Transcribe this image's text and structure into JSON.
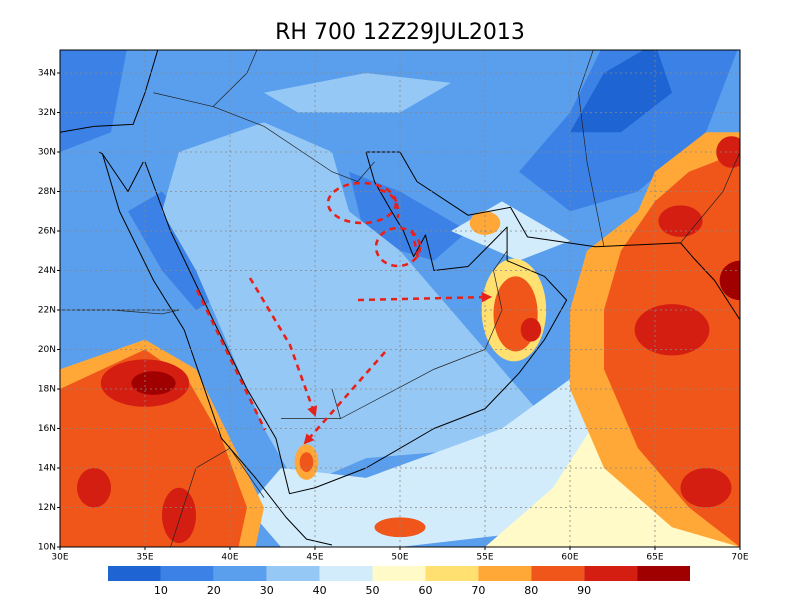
{
  "title": "RH 700 12Z29JUL2013",
  "map": {
    "lat_labels": [
      "34N",
      "32N",
      "30N",
      "28N",
      "26N",
      "24N",
      "22N",
      "20N",
      "18N",
      "16N",
      "14N",
      "12N",
      "10N"
    ],
    "lon_labels": [
      "30E",
      "35E",
      "40E",
      "45E",
      "50E",
      "55E",
      "60E",
      "65E",
      "70E"
    ]
  },
  "colorbar": {
    "labels": [
      "10",
      "20",
      "30",
      "40",
      "50",
      "60",
      "70",
      "80",
      "90"
    ],
    "colors": [
      "#1e64d2",
      "#3c82e6",
      "#5a9fee",
      "#96c8f5",
      "#d2ecfc",
      "#fffac8",
      "#ffe070",
      "#ffa838",
      "#f0561a",
      "#d41e12",
      "#a00000"
    ]
  }
}
